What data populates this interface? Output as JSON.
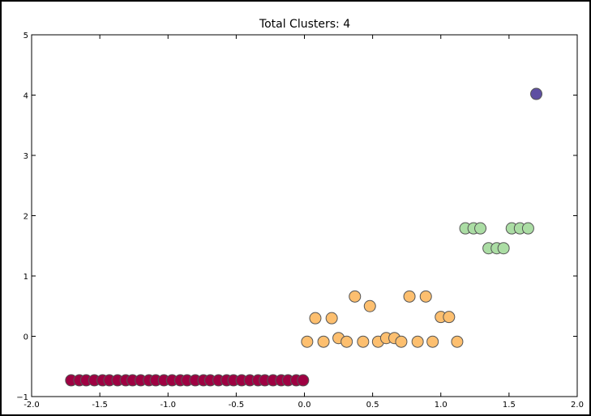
{
  "chart_data": {
    "type": "scatter",
    "title": "Total Clusters: 4",
    "xlabel": "",
    "ylabel": "",
    "xlim": [
      -2.0,
      2.0
    ],
    "ylim": [
      -1,
      5
    ],
    "x_ticks": [
      "-2.0",
      "-1.5",
      "-1.0",
      "-0.5",
      "0.0",
      "0.5",
      "1.0",
      "1.5",
      "2.0"
    ],
    "x_tick_values": [
      -2.0,
      -1.5,
      -1.0,
      -0.5,
      0.0,
      0.5,
      1.0,
      1.5,
      2.0
    ],
    "y_ticks": [
      "−1",
      "0",
      "1",
      "2",
      "3",
      "4",
      "5"
    ],
    "y_tick_values": [
      -1,
      0,
      1,
      2,
      3,
      4,
      5
    ],
    "grid": false,
    "series": [
      {
        "color": "#9e0142",
        "points": [
          [
            -1.71,
            -0.73
          ],
          [
            -1.65,
            -0.73
          ],
          [
            -1.6,
            -0.73
          ],
          [
            -1.54,
            -0.73
          ],
          [
            -1.48,
            -0.73
          ],
          [
            -1.43,
            -0.73
          ],
          [
            -1.37,
            -0.73
          ],
          [
            -1.31,
            -0.73
          ],
          [
            -1.26,
            -0.73
          ],
          [
            -1.2,
            -0.73
          ],
          [
            -1.14,
            -0.73
          ],
          [
            -1.09,
            -0.73
          ],
          [
            -1.03,
            -0.73
          ],
          [
            -0.97,
            -0.73
          ],
          [
            -0.91,
            -0.73
          ],
          [
            -0.86,
            -0.73
          ],
          [
            -0.8,
            -0.73
          ],
          [
            -0.74,
            -0.73
          ],
          [
            -0.69,
            -0.73
          ],
          [
            -0.63,
            -0.73
          ],
          [
            -0.57,
            -0.73
          ],
          [
            -0.52,
            -0.73
          ],
          [
            -0.46,
            -0.73
          ],
          [
            -0.4,
            -0.73
          ],
          [
            -0.34,
            -0.73
          ],
          [
            -0.29,
            -0.73
          ],
          [
            -0.23,
            -0.73
          ],
          [
            -0.17,
            -0.73
          ],
          [
            -0.12,
            -0.73
          ],
          [
            -0.06,
            -0.73
          ],
          [
            -0.01,
            -0.73
          ]
        ]
      },
      {
        "color": "#fdbf6f",
        "points": [
          [
            0.02,
            -0.09
          ],
          [
            0.08,
            0.3
          ],
          [
            0.14,
            -0.09
          ],
          [
            0.2,
            0.3
          ],
          [
            0.25,
            -0.03
          ],
          [
            0.31,
            -0.09
          ],
          [
            0.37,
            0.66
          ],
          [
            0.43,
            -0.09
          ],
          [
            0.48,
            0.5
          ],
          [
            0.54,
            -0.09
          ],
          [
            0.6,
            -0.03
          ],
          [
            0.66,
            -0.03
          ],
          [
            0.71,
            -0.09
          ],
          [
            0.77,
            0.66
          ],
          [
            0.83,
            -0.09
          ],
          [
            0.89,
            0.66
          ],
          [
            0.94,
            -0.09
          ],
          [
            1.0,
            0.32
          ],
          [
            1.06,
            0.32
          ],
          [
            1.12,
            -0.09
          ]
        ]
      },
      {
        "color": "#abdda4",
        "points": [
          [
            1.18,
            1.79
          ],
          [
            1.24,
            1.79
          ],
          [
            1.29,
            1.79
          ],
          [
            1.35,
            1.46
          ],
          [
            1.41,
            1.46
          ],
          [
            1.46,
            1.46
          ],
          [
            1.52,
            1.79
          ],
          [
            1.58,
            1.79
          ],
          [
            1.64,
            1.79
          ]
        ]
      },
      {
        "color": "#5e4fa2",
        "points": [
          [
            1.7,
            4.02
          ]
        ]
      }
    ]
  }
}
